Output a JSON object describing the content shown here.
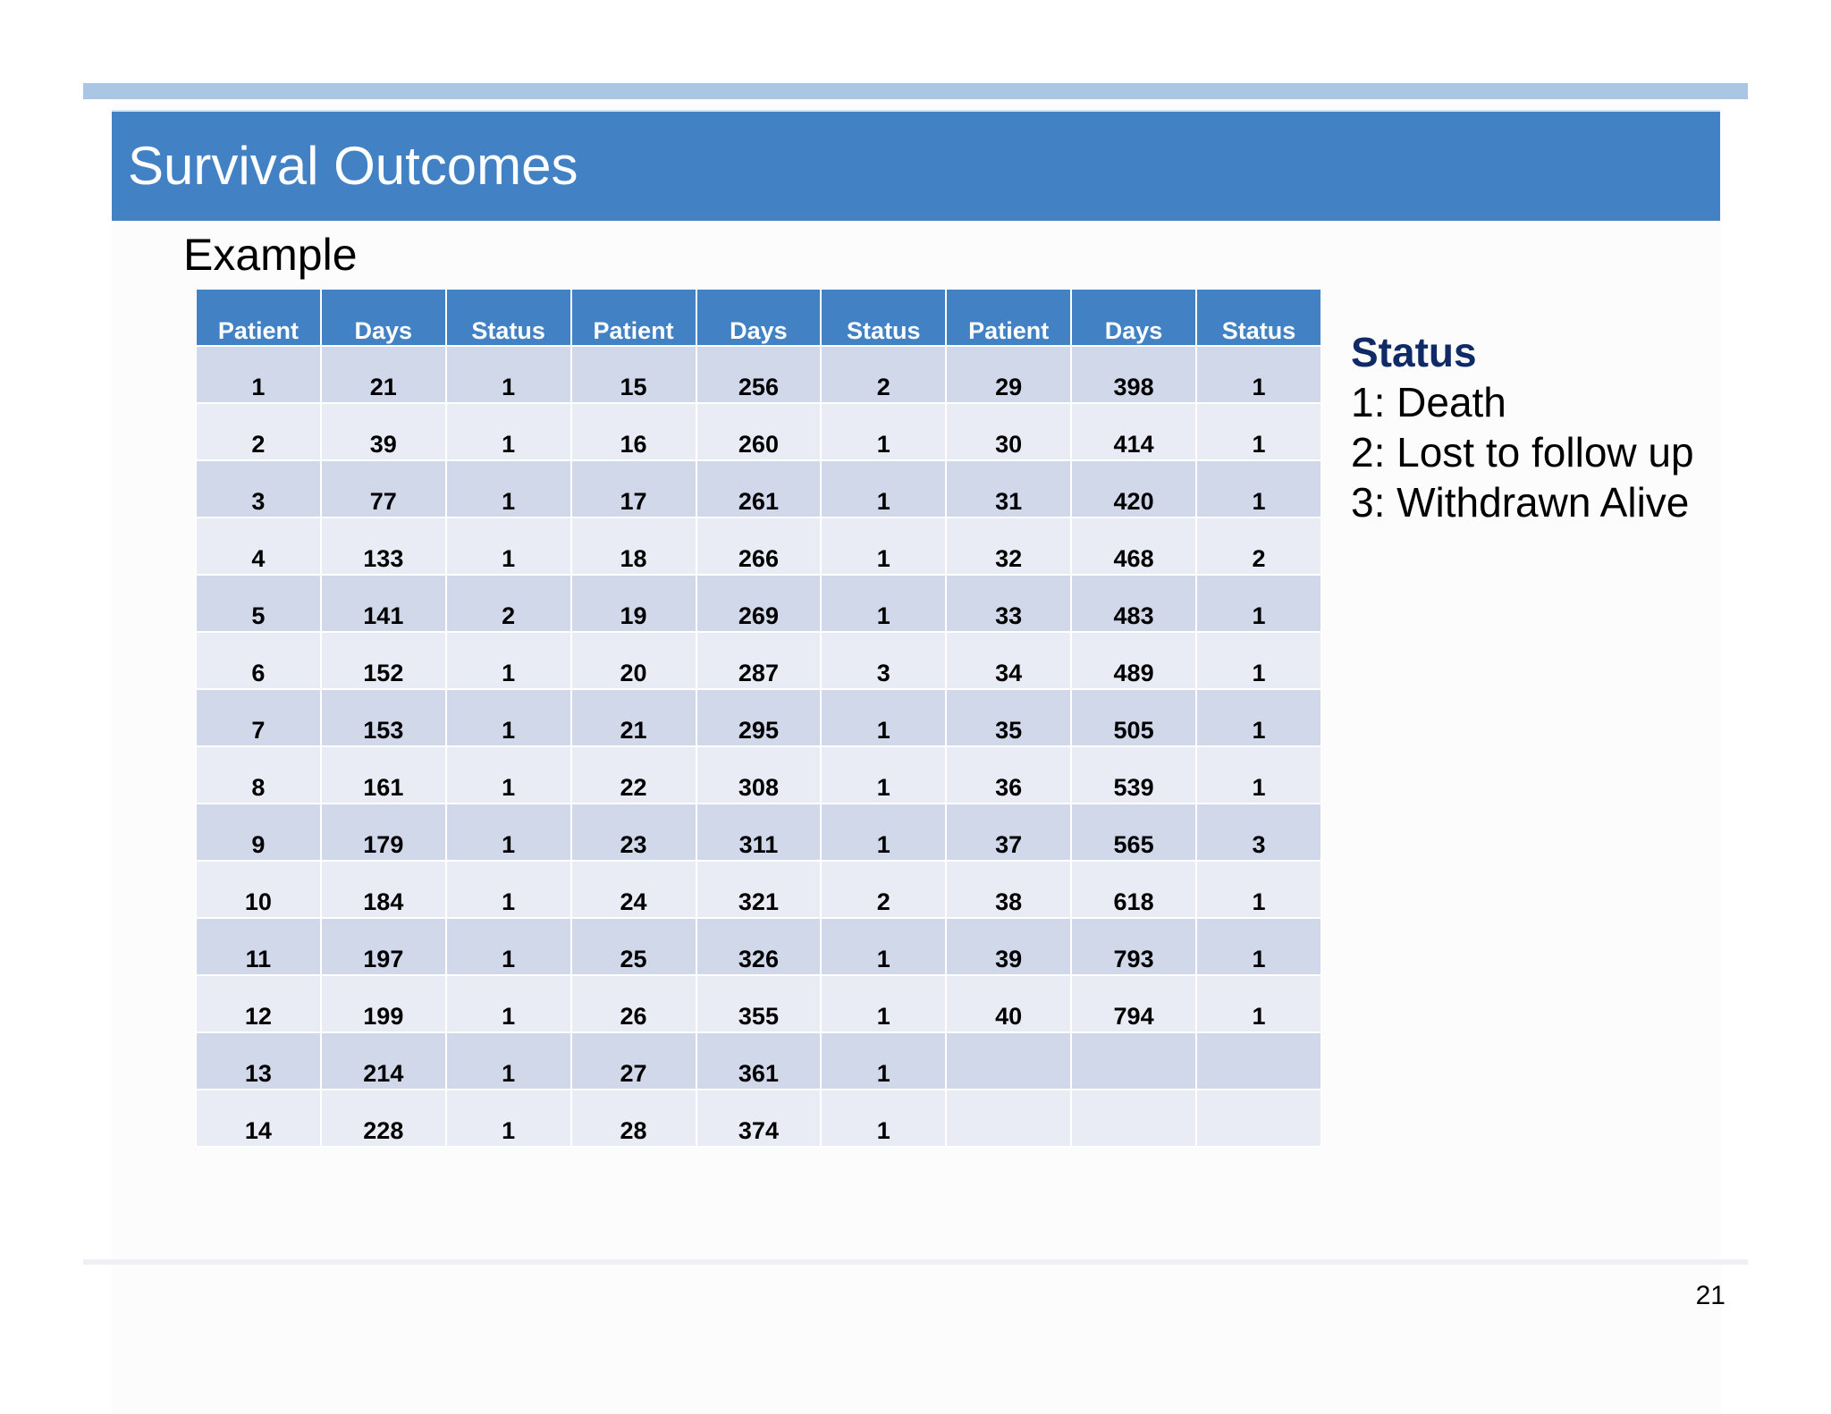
{
  "slide": {
    "title": "Survival Outcomes",
    "subtitle": "Example",
    "page_number": "21"
  },
  "table": {
    "headers": [
      "Patient",
      "Days",
      "Status",
      "Patient",
      "Days",
      "Status",
      "Patient",
      "Days",
      "Status"
    ],
    "rows": [
      [
        "1",
        "21",
        "1",
        "15",
        "256",
        "2",
        "29",
        "398",
        "1"
      ],
      [
        "2",
        "39",
        "1",
        "16",
        "260",
        "1",
        "30",
        "414",
        "1"
      ],
      [
        "3",
        "77",
        "1",
        "17",
        "261",
        "1",
        "31",
        "420",
        "1"
      ],
      [
        "4",
        "133",
        "1",
        "18",
        "266",
        "1",
        "32",
        "468",
        "2"
      ],
      [
        "5",
        "141",
        "2",
        "19",
        "269",
        "1",
        "33",
        "483",
        "1"
      ],
      [
        "6",
        "152",
        "1",
        "20",
        "287",
        "3",
        "34",
        "489",
        "1"
      ],
      [
        "7",
        "153",
        "1",
        "21",
        "295",
        "1",
        "35",
        "505",
        "1"
      ],
      [
        "8",
        "161",
        "1",
        "22",
        "308",
        "1",
        "36",
        "539",
        "1"
      ],
      [
        "9",
        "179",
        "1",
        "23",
        "311",
        "1",
        "37",
        "565",
        "3"
      ],
      [
        "10",
        "184",
        "1",
        "24",
        "321",
        "2",
        "38",
        "618",
        "1"
      ],
      [
        "11",
        "197",
        "1",
        "25",
        "326",
        "1",
        "39",
        "793",
        "1"
      ],
      [
        "12",
        "199",
        "1",
        "26",
        "355",
        "1",
        "40",
        "794",
        "1"
      ],
      [
        "13",
        "214",
        "1",
        "27",
        "361",
        "1",
        "",
        "",
        ""
      ],
      [
        "14",
        "228",
        "1",
        "28",
        "374",
        "1",
        "",
        "",
        ""
      ]
    ]
  },
  "legend": {
    "title": "Status",
    "items": [
      "1: Death",
      "2: Lost to follow up",
      "3: Withdrawn Alive"
    ]
  },
  "colors": {
    "title_bar": "#4281c4",
    "top_rule": "#aac6e2",
    "row_odd": "#d0d8ea",
    "row_even": "#e9ecf4",
    "legend_title": "#0f2a66"
  }
}
